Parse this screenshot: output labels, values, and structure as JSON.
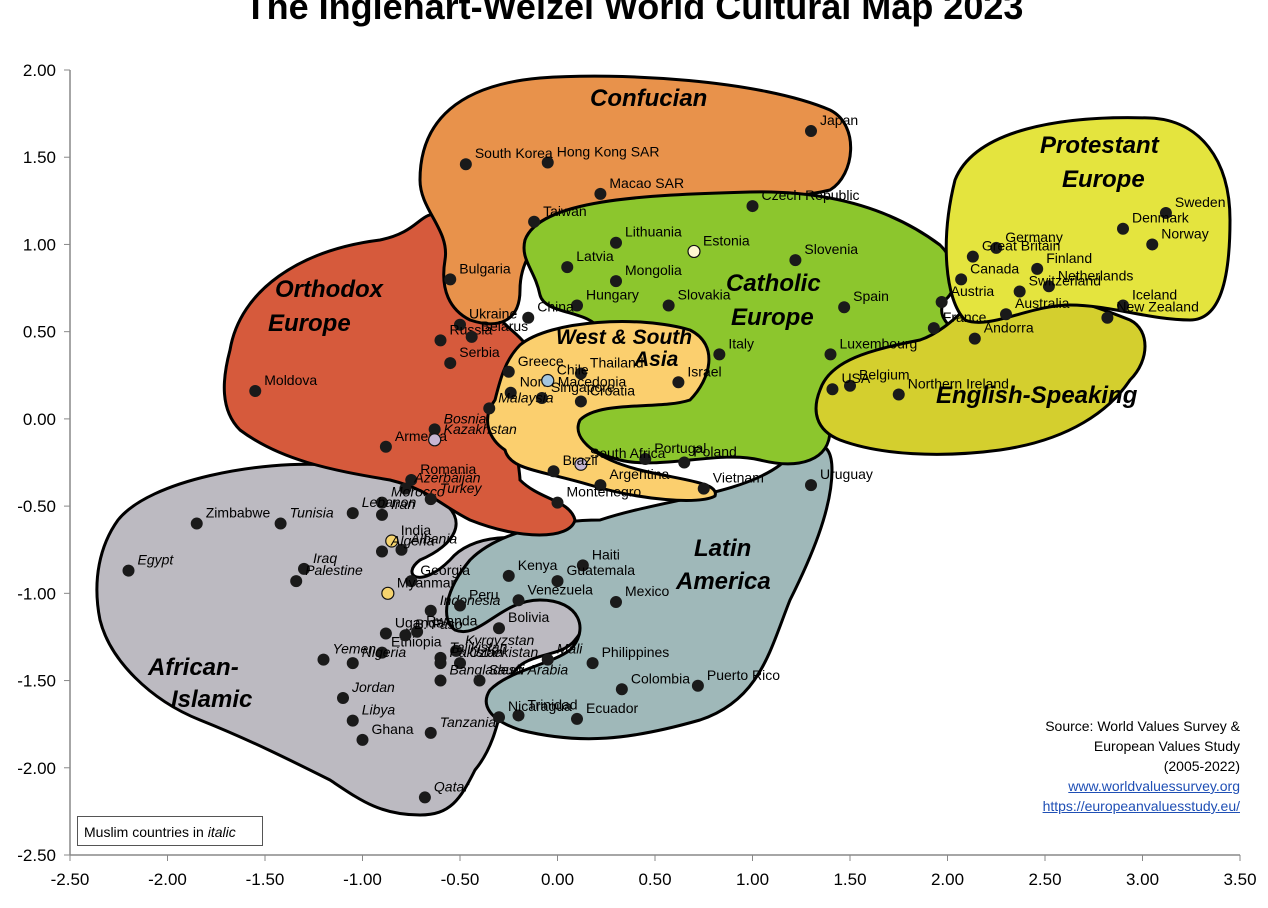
{
  "title": "The Inglehart-Welzel World Cultural Map 2023",
  "legend_note": {
    "text": "Muslim countries in",
    "emphasis": "italic"
  },
  "source": {
    "line1": "Source: World Values Survey &",
    "line2": "European Values Study",
    "line3": "(2005-2022)",
    "link1": "www.worldvaluessurvey.org",
    "link2": "https://europeanvaluesstudy.eu/"
  },
  "colors": {
    "confucian": "#e8924b",
    "orthodox": "#d65a3c",
    "catholic": "#8cc62d",
    "protestant": "#e4e43e",
    "english": "#d4cf2e",
    "west_south_asia": "#fbcf6e",
    "latin_america": "#9fb8b9",
    "african_islamic": "#bcbac1",
    "point": "#1a1a1a"
  },
  "chart_data": {
    "type": "scatter",
    "xlim": [
      -2.5,
      3.5
    ],
    "ylim": [
      -2.5,
      2.0
    ],
    "x_ticks": [
      "-2.50",
      "-2.00",
      "-1.50",
      "-1.00",
      "-0.50",
      "0.00",
      "0.50",
      "1.00",
      "1.50",
      "2.00",
      "2.50",
      "3.00",
      "3.50"
    ],
    "y_ticks": [
      "2.00",
      "1.50",
      "1.00",
      "0.50",
      "0.00",
      "-0.50",
      "-1.00",
      "-1.50",
      "-2.00",
      "-2.50"
    ],
    "grid": false,
    "zones": [
      {
        "name": "Confucian",
        "lines": [
          "Confucian"
        ]
      },
      {
        "name": "Protestant Europe",
        "lines": [
          "Protestant",
          "Europe"
        ]
      },
      {
        "name": "Orthodox Europe",
        "lines": [
          "Orthodox",
          "Europe"
        ]
      },
      {
        "name": "Catholic Europe",
        "lines": [
          "Catholic",
          "Europe"
        ]
      },
      {
        "name": "West & South Asia",
        "lines": [
          "West & South",
          "Asia"
        ]
      },
      {
        "name": "English-Speaking",
        "lines": [
          "English-Speaking"
        ]
      },
      {
        "name": "Latin America",
        "lines": [
          "Latin",
          "America"
        ]
      },
      {
        "name": "African-Islamic",
        "lines": [
          "African-",
          "Islamic"
        ]
      }
    ],
    "points": [
      {
        "label": "Japan",
        "x": 1.3,
        "y": 1.65
      },
      {
        "label": "Hong Kong SAR",
        "x": -0.05,
        "y": 1.47
      },
      {
        "label": "South Korea",
        "x": -0.47,
        "y": 1.46
      },
      {
        "label": "Macao SAR",
        "x": 0.22,
        "y": 1.29
      },
      {
        "label": "Taiwan",
        "x": -0.12,
        "y": 1.13
      },
      {
        "label": "Czech Republic",
        "x": 1.0,
        "y": 1.22
      },
      {
        "label": "Sweden",
        "x": 3.12,
        "y": 1.18
      },
      {
        "label": "Denmark",
        "x": 2.9,
        "y": 1.09
      },
      {
        "label": "Norway",
        "x": 3.05,
        "y": 1.0
      },
      {
        "label": "Germany",
        "x": 2.25,
        "y": 0.98
      },
      {
        "label": "Great Britain",
        "x": 2.13,
        "y": 0.93
      },
      {
        "label": "Finland",
        "x": 2.46,
        "y": 0.86
      },
      {
        "label": "Netherlands",
        "x": 2.52,
        "y": 0.76
      },
      {
        "label": "Switzerland",
        "x": 2.37,
        "y": 0.73
      },
      {
        "label": "Canada",
        "x": 2.07,
        "y": 0.8
      },
      {
        "label": "Iceland",
        "x": 2.9,
        "y": 0.65
      },
      {
        "label": "Australia",
        "x": 2.3,
        "y": 0.6
      },
      {
        "label": "New Zealand",
        "x": 2.82,
        "y": 0.58
      },
      {
        "label": "Austria",
        "x": 1.97,
        "y": 0.67
      },
      {
        "label": "Andorra",
        "x": 2.14,
        "y": 0.46
      },
      {
        "label": "France",
        "x": 1.93,
        "y": 0.52
      },
      {
        "label": "Estonia",
        "x": 0.7,
        "y": 0.96,
        "highlight": "#fff8d0"
      },
      {
        "label": "Slovenia",
        "x": 1.22,
        "y": 0.91
      },
      {
        "label": "Lithuania",
        "x": 0.3,
        "y": 1.01
      },
      {
        "label": "Latvia",
        "x": 0.05,
        "y": 0.87
      },
      {
        "label": "Mongolia",
        "x": 0.3,
        "y": 0.79
      },
      {
        "label": "Slovakia",
        "x": 0.57,
        "y": 0.65
      },
      {
        "label": "Hungary",
        "x": 0.1,
        "y": 0.65
      },
      {
        "label": "Spain",
        "x": 1.47,
        "y": 0.64
      },
      {
        "label": "China",
        "x": -0.15,
        "y": 0.58
      },
      {
        "label": "Italy",
        "x": 0.83,
        "y": 0.37
      },
      {
        "label": "Luxembourg",
        "x": 1.4,
        "y": 0.37
      },
      {
        "label": "Belgium",
        "x": 1.5,
        "y": 0.19
      },
      {
        "label": "USA",
        "x": 1.41,
        "y": 0.17
      },
      {
        "label": "Northern Ireland",
        "x": 1.75,
        "y": 0.14
      },
      {
        "label": "Bulgaria",
        "x": -0.55,
        "y": 0.8
      },
      {
        "label": "Ukraine",
        "x": -0.5,
        "y": 0.54
      },
      {
        "label": "Russia",
        "x": -0.6,
        "y": 0.45
      },
      {
        "label": "Belarus",
        "x": -0.44,
        "y": 0.47
      },
      {
        "label": "Serbia",
        "x": -0.55,
        "y": 0.32
      },
      {
        "label": "Greece",
        "x": -0.25,
        "y": 0.27
      },
      {
        "label": "North Macedonia",
        "x": -0.24,
        "y": 0.15
      },
      {
        "label": "Moldova",
        "x": -1.55,
        "y": 0.16
      },
      {
        "label": "Armenia",
        "x": -0.88,
        "y": -0.16
      },
      {
        "label": "Bosnia",
        "x": -0.63,
        "y": -0.06
      },
      {
        "label": "Kazakhstan",
        "x": -0.63,
        "y": -0.12,
        "highlight": "#c7b6d3"
      },
      {
        "label": "Romania",
        "x": -0.75,
        "y": -0.35
      },
      {
        "label": "Thailand",
        "x": 0.12,
        "y": 0.26
      },
      {
        "label": "Chile",
        "x": -0.05,
        "y": 0.22,
        "highlight": "#a4c6df"
      },
      {
        "label": "Israel",
        "x": 0.62,
        "y": 0.21
      },
      {
        "label": "Singapore",
        "x": -0.08,
        "y": 0.12
      },
      {
        "label": "Croatia",
        "x": 0.12,
        "y": 0.1
      },
      {
        "label": "Malaysia",
        "x": -0.35,
        "y": 0.06
      },
      {
        "label": "Portugal",
        "x": 0.45,
        "y": -0.23
      },
      {
        "label": "Poland",
        "x": 0.65,
        "y": -0.25
      },
      {
        "label": "South Africa",
        "x": 0.12,
        "y": -0.26,
        "highlight": "#c7b6d3"
      },
      {
        "label": "Brazil",
        "x": -0.02,
        "y": -0.3
      },
      {
        "label": "Vietnam",
        "x": 0.75,
        "y": -0.4
      },
      {
        "label": "Argentina",
        "x": 0.22,
        "y": -0.38
      },
      {
        "label": "Uruguay",
        "x": 1.3,
        "y": -0.38
      },
      {
        "label": "Montenegro",
        "x": 0.0,
        "y": -0.48
      },
      {
        "label": "Azerbaijan",
        "x": -0.78,
        "y": -0.4
      },
      {
        "label": "Morocco",
        "x": -0.9,
        "y": -0.48
      },
      {
        "label": "Turkey",
        "x": -0.65,
        "y": -0.46
      },
      {
        "label": "Iran",
        "x": -0.9,
        "y": -0.55
      },
      {
        "label": "Lebanon",
        "x": -1.05,
        "y": -0.54
      },
      {
        "label": "Tunisia",
        "x": -1.42,
        "y": -0.6
      },
      {
        "label": "Zimbabwe",
        "x": -1.85,
        "y": -0.6
      },
      {
        "label": "India",
        "x": -0.85,
        "y": -0.7,
        "highlight": "#f5d36e"
      },
      {
        "label": "Albania",
        "x": -0.8,
        "y": -0.75
      },
      {
        "label": "Algeria",
        "x": -0.9,
        "y": -0.76
      },
      {
        "label": "Egypt",
        "x": -2.2,
        "y": -0.87
      },
      {
        "label": "Iraq",
        "x": -1.3,
        "y": -0.86
      },
      {
        "label": "Palestine",
        "x": -1.34,
        "y": -0.93
      },
      {
        "label": "Georgia",
        "x": -0.75,
        "y": -0.93
      },
      {
        "label": "Kenya",
        "x": -0.25,
        "y": -0.9
      },
      {
        "label": "Haiti",
        "x": 0.13,
        "y": -0.84
      },
      {
        "label": "Guatemala",
        "x": 0.0,
        "y": -0.93
      },
      {
        "label": "Myanmar",
        "x": -0.87,
        "y": -1.0,
        "highlight": "#f5d36e"
      },
      {
        "label": "Indonesia",
        "x": -0.65,
        "y": -1.1
      },
      {
        "label": "Venezuela",
        "x": -0.2,
        "y": -1.04
      },
      {
        "label": "Mexico",
        "x": 0.3,
        "y": -1.05
      },
      {
        "label": "Peru",
        "x": -0.5,
        "y": -1.07
      },
      {
        "label": "Rwanda",
        "x": -0.72,
        "y": -1.22
      },
      {
        "label": "Uganda",
        "x": -0.88,
        "y": -1.23
      },
      {
        "label": "Bolivia",
        "x": -0.3,
        "y": -1.2
      },
      {
        "label": "Ethiopia",
        "x": -0.9,
        "y": -1.34
      },
      {
        "label": "B. Faso",
        "x": -0.78,
        "y": -1.24
      },
      {
        "label": "Kyrgyzstan",
        "x": -0.52,
        "y": -1.33
      },
      {
        "label": "Tajikistan",
        "x": -0.6,
        "y": -1.37
      },
      {
        "label": "Uzbekistan",
        "x": -0.5,
        "y": -1.4
      },
      {
        "label": "Mali",
        "x": -0.05,
        "y": -1.38
      },
      {
        "label": "Yemen",
        "x": -1.2,
        "y": -1.38
      },
      {
        "label": "Nigeria",
        "x": -1.05,
        "y": -1.4
      },
      {
        "label": "Pakistan",
        "x": -0.6,
        "y": -1.4
      },
      {
        "label": "Philippines",
        "x": 0.18,
        "y": -1.4
      },
      {
        "label": "Puerto Rico",
        "x": 0.72,
        "y": -1.53
      },
      {
        "label": "Bangladesh",
        "x": -0.6,
        "y": -1.5
      },
      {
        "label": "Saudi Arabia",
        "x": -0.4,
        "y": -1.5
      },
      {
        "label": "Colombia",
        "x": 0.33,
        "y": -1.55
      },
      {
        "label": "Jordan",
        "x": -1.1,
        "y": -1.6
      },
      {
        "label": "Ecuador",
        "x": 0.1,
        "y": -1.72
      },
      {
        "label": "Trinidad",
        "x": -0.2,
        "y": -1.7
      },
      {
        "label": "Nicaragua",
        "x": -0.3,
        "y": -1.71
      },
      {
        "label": "Libya",
        "x": -1.05,
        "y": -1.73
      },
      {
        "label": "Tanzania",
        "x": -0.65,
        "y": -1.8
      },
      {
        "label": "Ghana",
        "x": -1.0,
        "y": -1.84
      },
      {
        "label": "Qatar",
        "x": -0.68,
        "y": -2.17
      }
    ]
  }
}
